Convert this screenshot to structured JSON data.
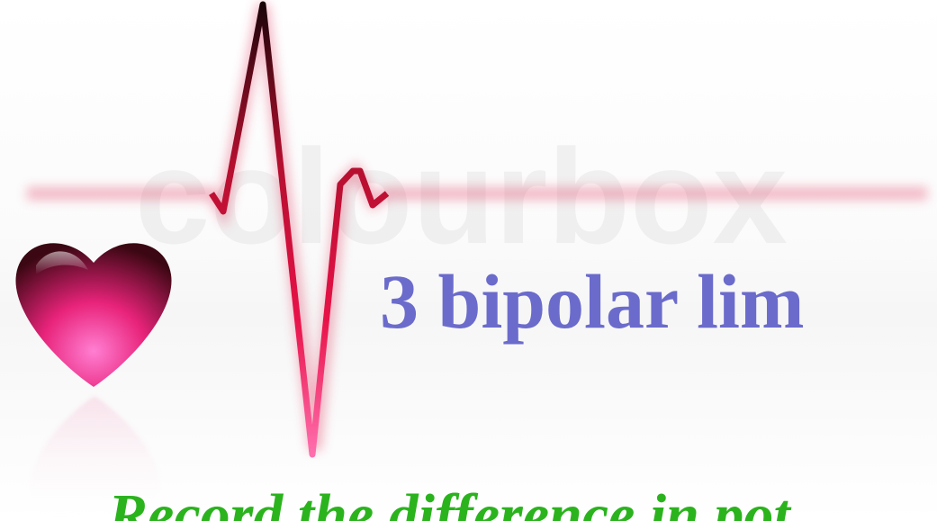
{
  "slide": {
    "title": "3 bipolar lim",
    "subtitle": "Record the difference in pot",
    "watermark": "colourbox"
  },
  "colors": {
    "title": "#6b6bcc",
    "subtitle": "#2bb31e",
    "ecg_line": "#d0123a",
    "heart": "#e8237a"
  }
}
